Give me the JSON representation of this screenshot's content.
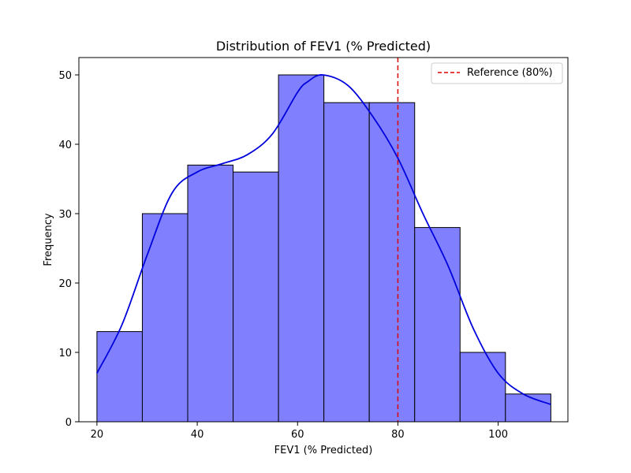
{
  "chart_data": {
    "type": "bar",
    "title": "Distribution of FEV1 (% Predicted)",
    "xlabel": "FEV1 (% Predicted)",
    "ylabel": "Frequency",
    "xlim": [
      16.4,
      113.9
    ],
    "ylim": [
      0,
      52.5
    ],
    "x_ticks": [
      20,
      40,
      60,
      80,
      100
    ],
    "y_ticks": [
      0,
      10,
      20,
      30,
      40,
      50
    ],
    "bin_edges": [
      20.0,
      29.05,
      38.1,
      47.15,
      56.2,
      65.25,
      74.3,
      83.35,
      92.4,
      101.45,
      110.5
    ],
    "counts": [
      13,
      30,
      37,
      36,
      50,
      46,
      46,
      28,
      10,
      4
    ],
    "bar_color": "#8080ff",
    "bar_edge_color": "#000000",
    "kde": {
      "color": "#0000dd",
      "x": [
        20,
        25,
        30,
        35,
        40,
        45,
        50,
        55,
        60,
        62,
        65,
        70,
        75,
        80,
        85,
        90,
        95,
        100,
        105,
        110.5
      ],
      "y": [
        7,
        14,
        24,
        33,
        36,
        37.2,
        38.5,
        41.5,
        47.5,
        49,
        50,
        48.5,
        44,
        38,
        30,
        22.5,
        13.5,
        7,
        4,
        2.5
      ]
    },
    "reference_line": {
      "x": 80,
      "label": "Reference (80%)",
      "color": "#dd0000",
      "style": "dashed"
    },
    "legend": {
      "position": "top-right",
      "entries": [
        "Reference (80%)"
      ]
    },
    "grid": false
  }
}
